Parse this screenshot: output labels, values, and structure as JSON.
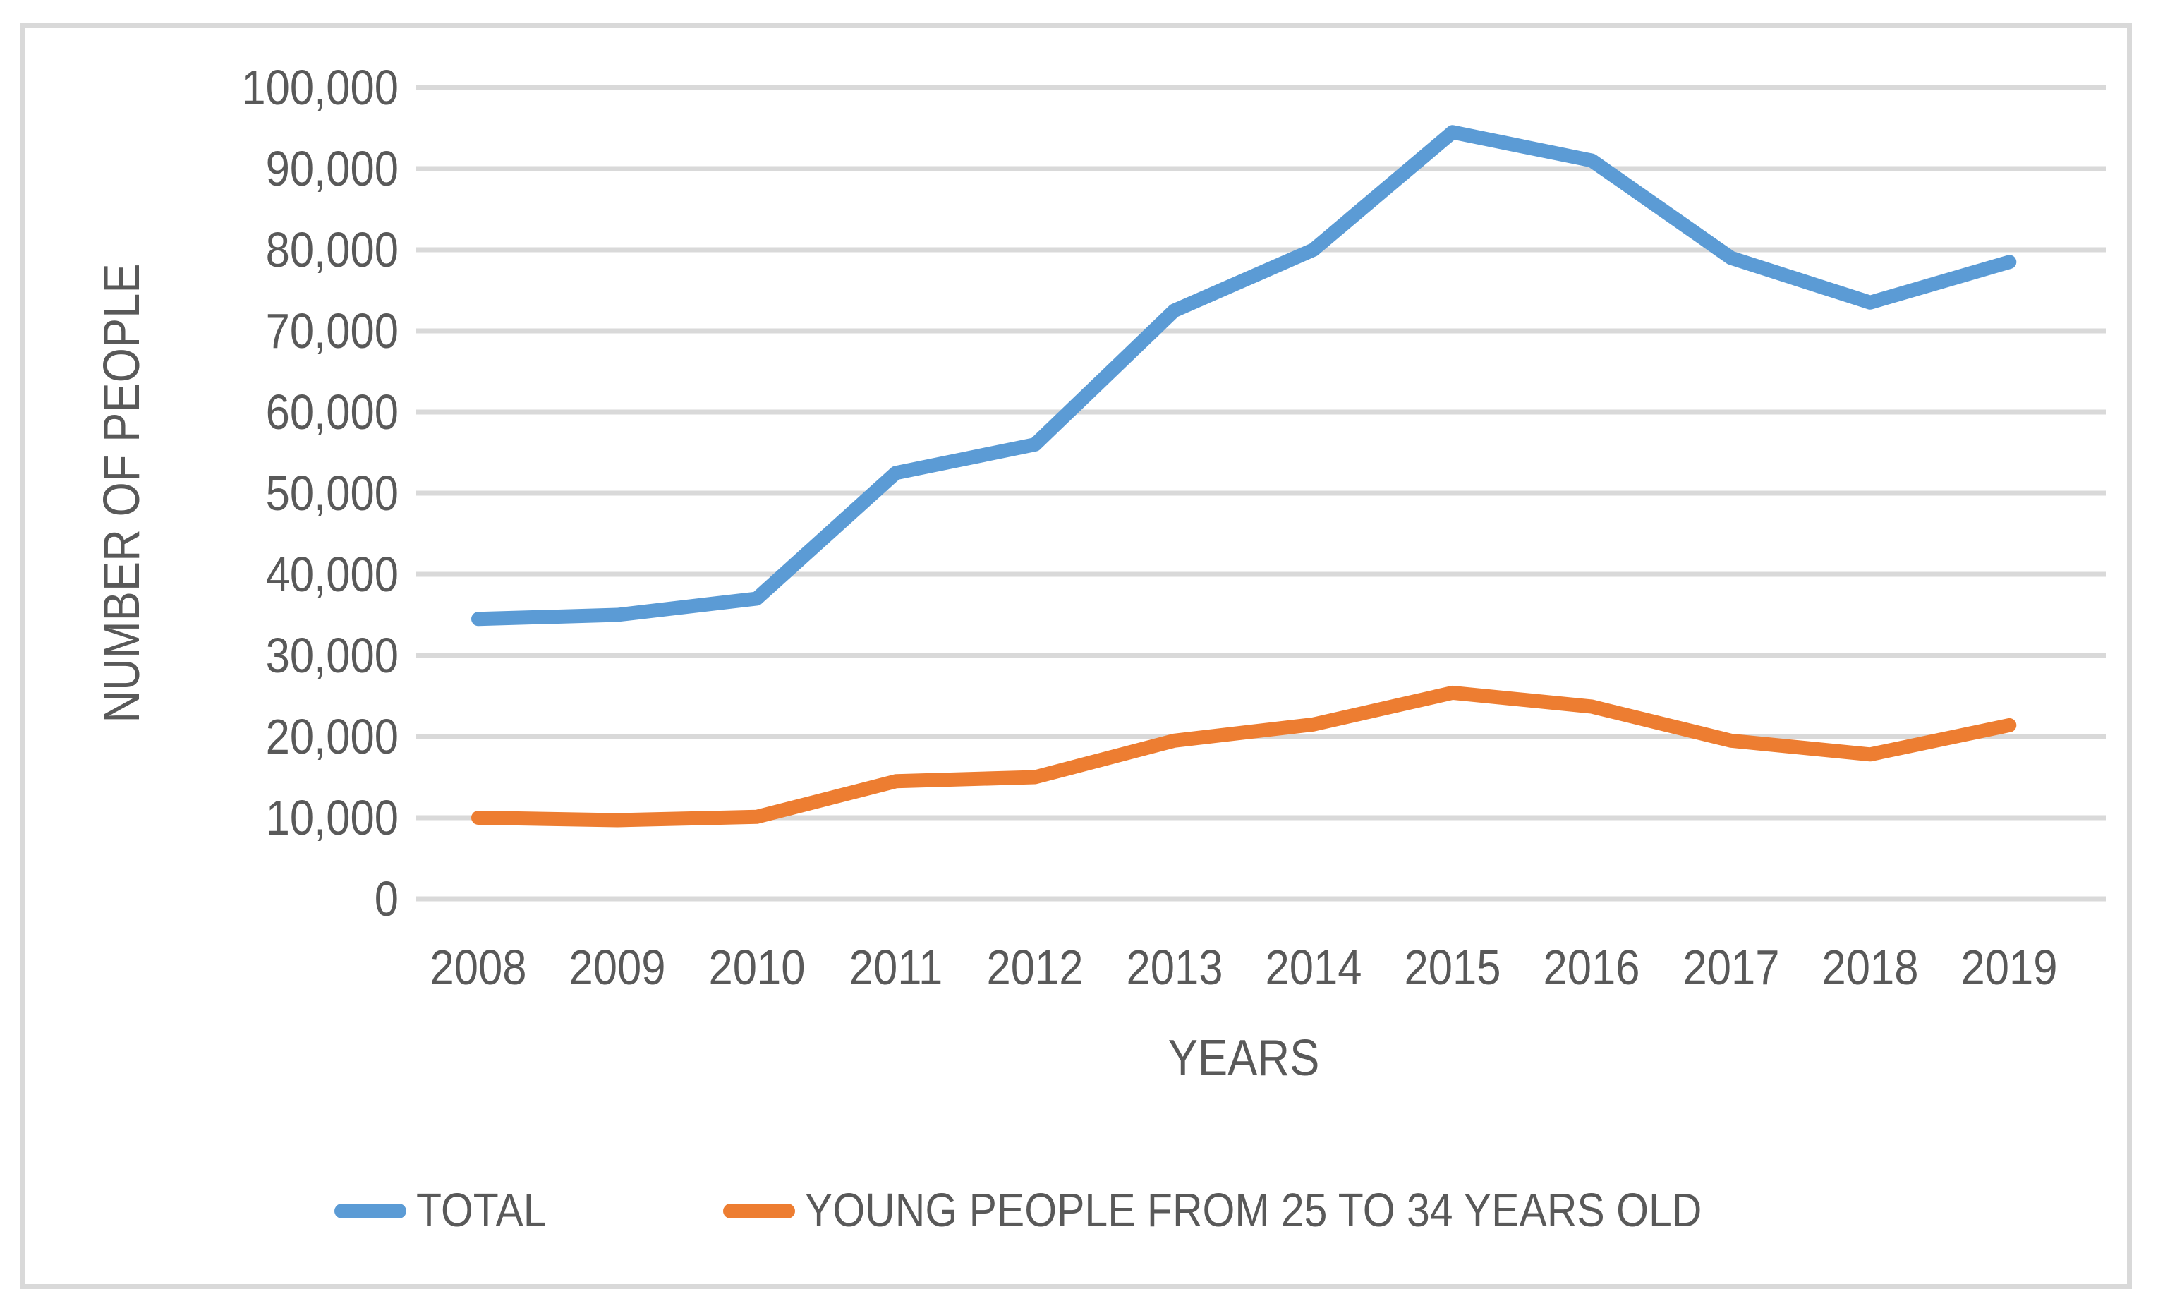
{
  "page": {
    "background": "#FFFFFF",
    "frame_border_color": "#D9D9D9"
  },
  "chart_data": {
    "type": "line",
    "title": "",
    "categories": [
      "2008",
      "2009",
      "2010",
      "2011",
      "2012",
      "2013",
      "2014",
      "2015",
      "2016",
      "2017",
      "2018",
      "2019"
    ],
    "series": [
      {
        "name": "TOTAL",
        "color": "#5B9BD5",
        "values": [
          34500,
          35000,
          37000,
          52500,
          56000,
          72500,
          80000,
          94500,
          91000,
          79000,
          73500,
          78500
        ]
      },
      {
        "name": "YOUNG PEOPLE FROM 25 TO 34 YEARS OLD",
        "color": "#ED7D31",
        "values": [
          10000,
          9700,
          10100,
          14500,
          15000,
          19500,
          21500,
          25400,
          23700,
          19500,
          17800,
          21400
        ]
      }
    ],
    "xlabel": "YEARS",
    "ylabel": "NUMBER OF PEOPLE",
    "ylim": [
      0,
      100000
    ],
    "y_tick_step": 10000,
    "y_tick_labels": [
      "0",
      "10,000",
      "20,000",
      "30,000",
      "40,000",
      "50,000",
      "60,000",
      "70,000",
      "80,000",
      "90,000",
      "100,000"
    ],
    "grid": "horizontal",
    "gridline_color": "#D9D9D9",
    "text_color": "#595959",
    "line_width": 20,
    "legend_position": "bottom"
  }
}
